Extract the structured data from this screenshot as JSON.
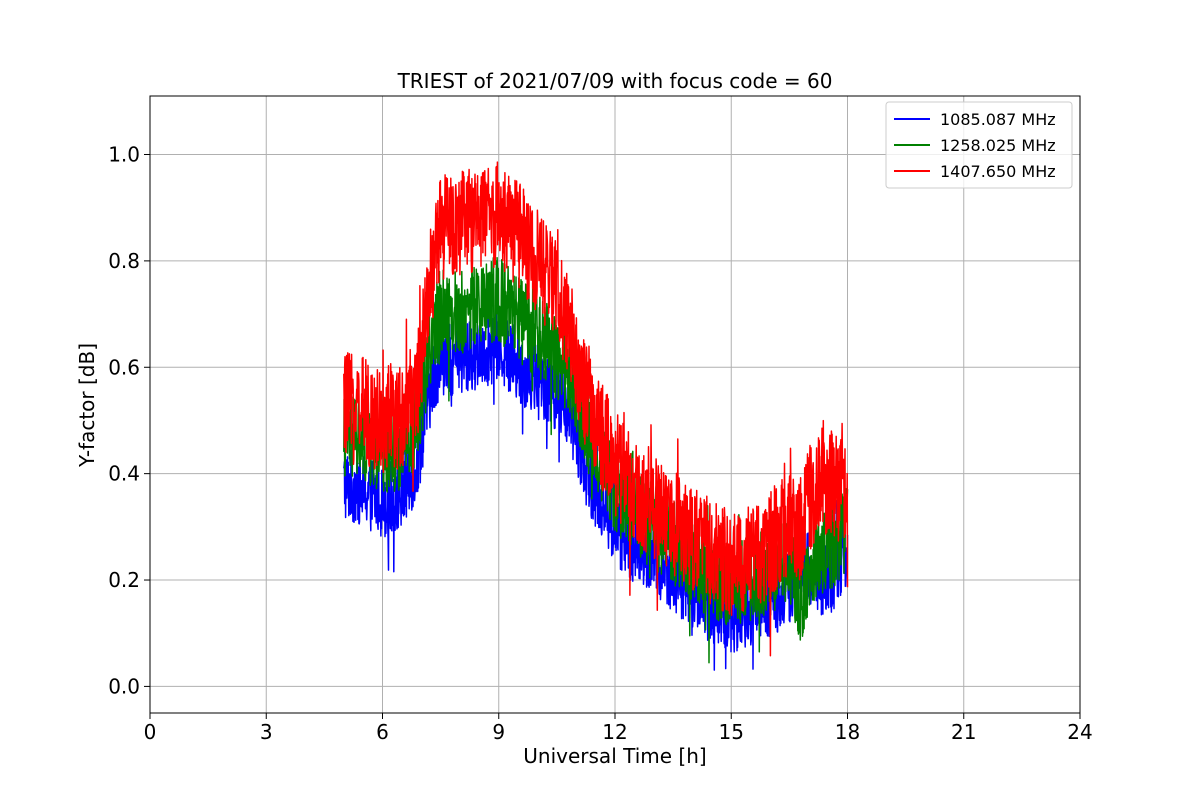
{
  "chart_data": {
    "type": "line",
    "title": "TRIEST of 2021/07/09 with focus code = 60",
    "xlabel": "Universal Time [h]",
    "ylabel": "Y-factor [dB]",
    "xlim": [
      0,
      24
    ],
    "ylim": [
      -0.05,
      1.11
    ],
    "xticks": [
      0,
      3,
      6,
      9,
      12,
      15,
      18,
      21,
      24
    ],
    "xtick_labels": [
      "0",
      "3",
      "6",
      "9",
      "12",
      "15",
      "18",
      "21",
      "24"
    ],
    "yticks": [
      0.0,
      0.2,
      0.4,
      0.6,
      0.8,
      1.0
    ],
    "ytick_labels": [
      "0.0",
      "0.2",
      "0.4",
      "0.6",
      "0.8",
      "1.0"
    ],
    "grid": true,
    "legend": {
      "position": "top-right"
    },
    "series": [
      {
        "name": "1085.087 MHz",
        "color": "#0000ff",
        "noise": 0.07,
        "x": [
          5.0,
          5.5,
          6.0,
          6.5,
          6.9,
          7.2,
          7.5,
          8.0,
          8.5,
          9.0,
          9.5,
          10.0,
          10.5,
          10.9,
          11.2,
          11.6,
          12.0,
          12.5,
          13.0,
          13.5,
          14.0,
          14.5,
          15.0,
          15.5,
          16.0,
          16.5,
          16.8,
          17.0,
          17.3,
          17.6,
          18.0
        ],
        "y": [
          0.38,
          0.37,
          0.35,
          0.36,
          0.42,
          0.55,
          0.62,
          0.61,
          0.63,
          0.64,
          0.6,
          0.58,
          0.55,
          0.5,
          0.42,
          0.35,
          0.3,
          0.26,
          0.24,
          0.21,
          0.18,
          0.15,
          0.13,
          0.14,
          0.16,
          0.19,
          0.23,
          0.22,
          0.2,
          0.21,
          0.25
        ]
      },
      {
        "name": "1258.025 MHz",
        "color": "#008000",
        "noise": 0.08,
        "x": [
          5.0,
          5.5,
          6.0,
          6.5,
          6.9,
          7.2,
          7.5,
          8.0,
          8.5,
          9.0,
          9.5,
          10.0,
          10.5,
          10.9,
          11.2,
          11.6,
          12.0,
          12.5,
          13.0,
          13.5,
          14.0,
          14.5,
          15.0,
          15.5,
          16.0,
          16.5,
          16.8,
          17.0,
          17.3,
          17.6,
          18.0
        ],
        "y": [
          0.47,
          0.46,
          0.44,
          0.45,
          0.5,
          0.63,
          0.71,
          0.7,
          0.72,
          0.73,
          0.69,
          0.66,
          0.62,
          0.58,
          0.5,
          0.43,
          0.37,
          0.33,
          0.3,
          0.27,
          0.24,
          0.21,
          0.19,
          0.2,
          0.22,
          0.24,
          0.16,
          0.2,
          0.25,
          0.26,
          0.3
        ]
      },
      {
        "name": "1407.650 MHz",
        "color": "#ff0000",
        "noise": 0.1,
        "x": [
          5.0,
          5.5,
          6.0,
          6.5,
          6.9,
          7.2,
          7.5,
          8.0,
          8.5,
          9.0,
          9.5,
          10.0,
          10.5,
          10.9,
          11.2,
          11.6,
          12.0,
          12.5,
          13.0,
          13.5,
          14.0,
          14.5,
          15.0,
          15.5,
          16.0,
          16.5,
          16.8,
          17.0,
          17.3,
          17.6,
          18.0
        ],
        "y": [
          0.53,
          0.52,
          0.5,
          0.51,
          0.56,
          0.75,
          0.86,
          0.87,
          0.88,
          0.89,
          0.85,
          0.8,
          0.74,
          0.66,
          0.55,
          0.48,
          0.42,
          0.37,
          0.34,
          0.31,
          0.28,
          0.25,
          0.23,
          0.24,
          0.27,
          0.3,
          0.3,
          0.35,
          0.39,
          0.38,
          0.36
        ]
      }
    ]
  }
}
